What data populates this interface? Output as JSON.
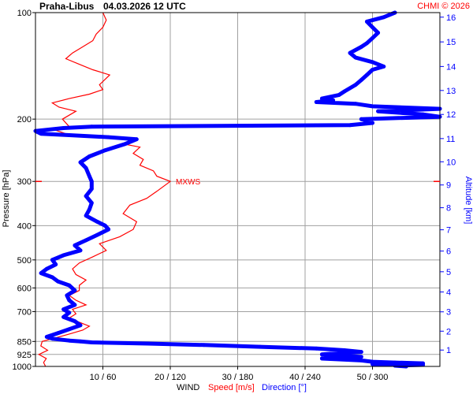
{
  "header": {
    "station": "Praha-Libus",
    "datetime": "04.03.2026 12 UTC",
    "credit": "CHMI © 2026"
  },
  "colors": {
    "speed": "#ff0000",
    "direction": "#0000ff",
    "grid": "#a0a0a0",
    "axis": "#000000"
  },
  "chart_data": {
    "type": "line",
    "title": "",
    "xlabel": "WIND",
    "xlabel_speed": "Speed [m/s]",
    "xlabel_direction": "Direction [°]",
    "ylabel": "Pressure [hPa]",
    "ylabel_right": "Altitude [km]",
    "pressure_range": [
      100,
      1000
    ],
    "pressure_ticks": [
      100,
      200,
      300,
      400,
      500,
      600,
      700,
      850,
      925,
      1000
    ],
    "altitude_ticks": [
      1,
      2,
      3,
      4,
      5,
      6,
      7,
      8,
      9,
      10,
      11,
      12,
      13,
      14,
      15,
      16
    ],
    "altitude_pressure": [
      899,
      795,
      701,
      616,
      540,
      472,
      411,
      356,
      307,
      264,
      227,
      194,
      166,
      142,
      121,
      103
    ],
    "x_ticks": [
      "10 / 60",
      "20 / 120",
      "30 / 180",
      "40 / 240",
      "50 / 300"
    ],
    "speed_range": [
      0,
      60
    ],
    "direction_range": [
      0,
      360
    ],
    "annotation": {
      "label": "MXWS",
      "pressure": 300
    },
    "series": [
      {
        "name": "Speed [m/s]",
        "unit": "m/s",
        "points": [
          [
            1000,
            1.5
          ],
          [
            975,
            1.2
          ],
          [
            950,
            1.6
          ],
          [
            925,
            0.5
          ],
          [
            900,
            1.8
          ],
          [
            875,
            0.8
          ],
          [
            850,
            1.0
          ],
          [
            830,
            3.0
          ],
          [
            810,
            5.0
          ],
          [
            790,
            7.0
          ],
          [
            770,
            8.0
          ],
          [
            750,
            6.5
          ],
          [
            730,
            5.0
          ],
          [
            710,
            6.0
          ],
          [
            690,
            5.5
          ],
          [
            670,
            7.5
          ],
          [
            650,
            6.0
          ],
          [
            630,
            5.0
          ],
          [
            610,
            6.5
          ],
          [
            590,
            6.5
          ],
          [
            570,
            7.5
          ],
          [
            550,
            6.0
          ],
          [
            530,
            5.5
          ],
          [
            510,
            6.5
          ],
          [
            490,
            8.5
          ],
          [
            470,
            10.5
          ],
          [
            450,
            9.5
          ],
          [
            430,
            12.5
          ],
          [
            410,
            14.5
          ],
          [
            390,
            15.0
          ],
          [
            370,
            13.0
          ],
          [
            350,
            14.0
          ],
          [
            335,
            16.5
          ],
          [
            320,
            18.0
          ],
          [
            300,
            20.0
          ],
          [
            290,
            18.0
          ],
          [
            280,
            17.5
          ],
          [
            270,
            15.5
          ],
          [
            260,
            16.0
          ],
          [
            250,
            14.5
          ],
          [
            240,
            15.5
          ],
          [
            235,
            13.0
          ],
          [
            230,
            14.5
          ],
          [
            225,
            11.0
          ],
          [
            220,
            4.5
          ],
          [
            215,
            3.0
          ],
          [
            210,
            5.0
          ],
          [
            200,
            4.0
          ],
          [
            190,
            6.0
          ],
          [
            185,
            3.5
          ],
          [
            180,
            2.5
          ],
          [
            175,
            5.0
          ],
          [
            170,
            8.0
          ],
          [
            165,
            10.0
          ],
          [
            160,
            9.5
          ],
          [
            150,
            11.0
          ],
          [
            145,
            8.5
          ],
          [
            140,
            6.5
          ],
          [
            135,
            4.5
          ],
          [
            130,
            5.5
          ],
          [
            125,
            7.0
          ],
          [
            120,
            8.5
          ],
          [
            115,
            9.0
          ],
          [
            110,
            10.0
          ],
          [
            105,
            10.5
          ],
          [
            100,
            10.0
          ]
        ]
      },
      {
        "name": "Direction [°]",
        "unit": "deg",
        "points": [
          [
            1000,
            330
          ],
          [
            995,
            320
          ],
          [
            990,
            345
          ],
          [
            985,
            300
          ],
          [
            980,
            345
          ],
          [
            975,
            320
          ],
          [
            970,
            300
          ],
          [
            962,
            290
          ],
          [
            955,
            270
          ],
          [
            950,
            255
          ],
          [
            945,
            275
          ],
          [
            940,
            290
          ],
          [
            932,
            270
          ],
          [
            925,
            255
          ],
          [
            918,
            270
          ],
          [
            910,
            290
          ],
          [
            900,
            275
          ],
          [
            890,
            250
          ],
          [
            880,
            200
          ],
          [
            870,
            150
          ],
          [
            862,
            100
          ],
          [
            855,
            50
          ],
          [
            850,
            40
          ],
          [
            845,
            30
          ],
          [
            835,
            15
          ],
          [
            825,
            10
          ],
          [
            805,
            20
          ],
          [
            785,
            30
          ],
          [
            765,
            40
          ],
          [
            745,
            35
          ],
          [
            725,
            25
          ],
          [
            705,
            30
          ],
          [
            690,
            25
          ],
          [
            670,
            35
          ],
          [
            650,
            30
          ],
          [
            630,
            28
          ],
          [
            610,
            35
          ],
          [
            590,
            30
          ],
          [
            575,
            20
          ],
          [
            560,
            15
          ],
          [
            545,
            5
          ],
          [
            530,
            10
          ],
          [
            515,
            18
          ],
          [
            500,
            15
          ],
          [
            485,
            25
          ],
          [
            470,
            40
          ],
          [
            455,
            35
          ],
          [
            440,
            45
          ],
          [
            425,
            55
          ],
          [
            410,
            65
          ],
          [
            400,
            62
          ],
          [
            390,
            55
          ],
          [
            375,
            45
          ],
          [
            360,
            48
          ],
          [
            345,
            50
          ],
          [
            330,
            45
          ],
          [
            315,
            50
          ],
          [
            300,
            50
          ],
          [
            290,
            48
          ],
          [
            275,
            45
          ],
          [
            265,
            40
          ],
          [
            255,
            48
          ],
          [
            245,
            62
          ],
          [
            235,
            80
          ],
          [
            228,
            90
          ],
          [
            225,
            65
          ],
          [
            222,
            30
          ],
          [
            220,
            5
          ],
          [
            216,
            0
          ],
          [
            212,
            25
          ],
          [
            210,
            50
          ],
          [
            208,
            280
          ],
          [
            205,
            300
          ],
          [
            200,
            290
          ],
          [
            197,
            360
          ],
          [
            194,
            345
          ],
          [
            190,
            305
          ],
          [
            187,
            360
          ],
          [
            184,
            300
          ],
          [
            181,
            285
          ],
          [
            179,
            250
          ],
          [
            177,
            265
          ],
          [
            175,
            255
          ],
          [
            171,
            270
          ],
          [
            167,
            275
          ],
          [
            160,
            285
          ],
          [
            155,
            290
          ],
          [
            150,
            295
          ],
          [
            145,
            300
          ],
          [
            142,
            310
          ],
          [
            138,
            300
          ],
          [
            134,
            285
          ],
          [
            130,
            280
          ],
          [
            125,
            290
          ],
          [
            122,
            295
          ],
          [
            118,
            300
          ],
          [
            114,
            305
          ],
          [
            110,
            300
          ],
          [
            106,
            295
          ],
          [
            103,
            310
          ],
          [
            100,
            320
          ]
        ]
      }
    ],
    "grid": true,
    "legend": "bottom"
  }
}
